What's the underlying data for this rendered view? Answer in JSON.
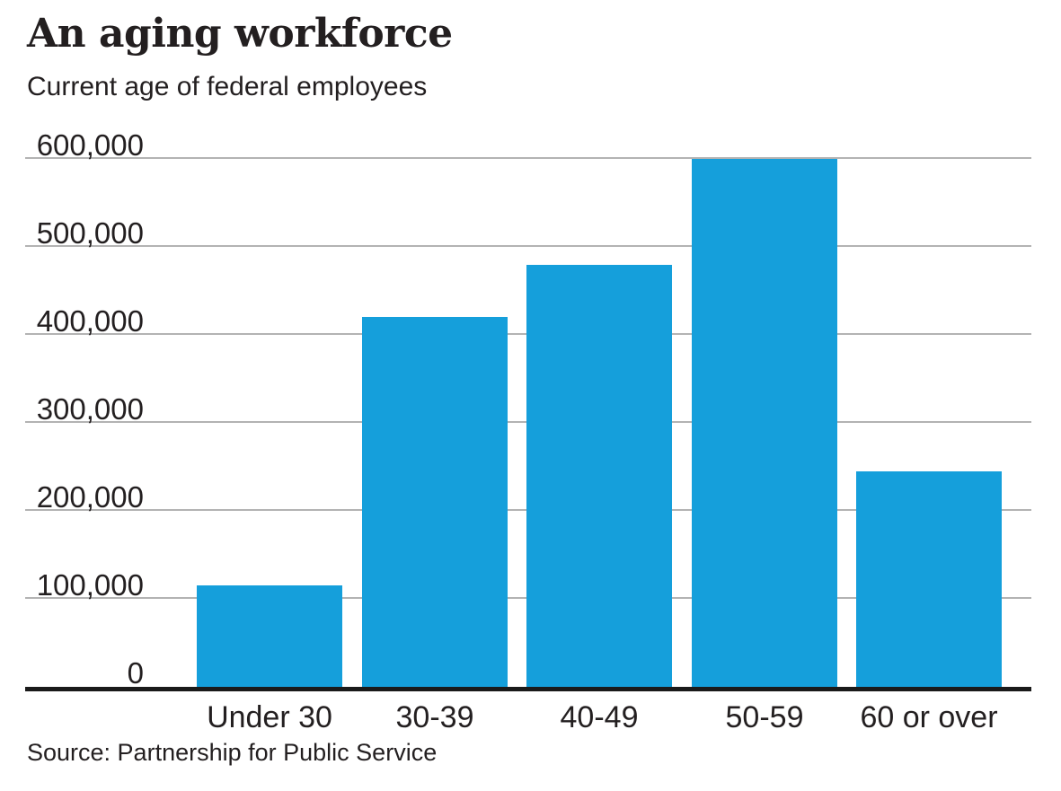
{
  "chart": {
    "title": "An aging workforce",
    "subtitle": "Current age of federal employees",
    "source": "Source: Partnership for Public Service"
  },
  "chart_data": {
    "type": "bar",
    "title": "An aging workforce",
    "subtitle": "Current age of federal employees",
    "source": "Source: Partnership for Public Service",
    "categories": [
      "Under 30",
      "30-39",
      "40-49",
      "50-59",
      "60 or over"
    ],
    "values": [
      115000,
      420000,
      480000,
      600000,
      245000
    ],
    "xlabel": "",
    "ylabel": "",
    "ylim": [
      0,
      600000
    ],
    "y_ticks": [
      0,
      100000,
      200000,
      300000,
      400000,
      500000,
      600000
    ],
    "y_tick_labels": [
      "0",
      "100,000",
      "200,000",
      "300,000",
      "400,000",
      "500,000",
      "600,000"
    ],
    "grid": "horizontal-only",
    "legend": "none"
  },
  "colors": {
    "bar": "#159fdb",
    "gridline": "#b3b3b3",
    "axis": "#1a1a1a",
    "text": "#231f20",
    "background": "#ffffff"
  }
}
